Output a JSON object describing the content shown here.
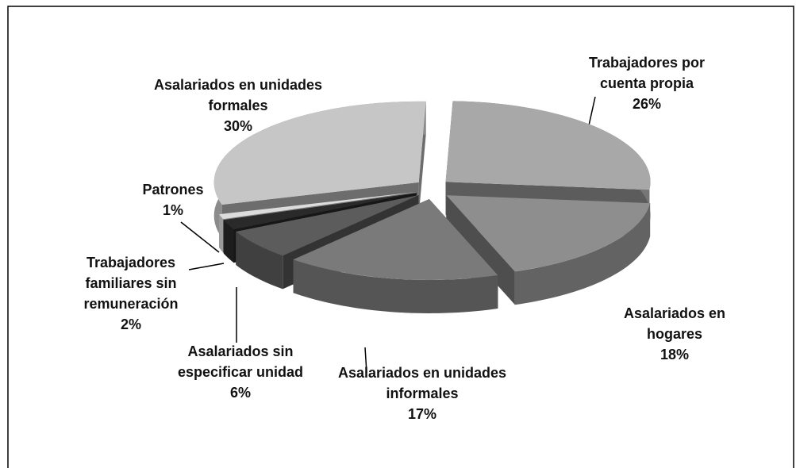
{
  "chart_data": {
    "type": "pie3d",
    "categories": [
      "Trabajadores por cuenta propia",
      "Asalariados en hogares",
      "Asalariados en unidades informales",
      "Asalariados sin especificar unidad",
      "Trabajadores familiares sin remuneración",
      "Patrones",
      "Asalariados en unidades formales"
    ],
    "values": [
      26,
      18,
      17,
      6,
      2,
      1,
      30
    ],
    "value_labels": [
      "26%",
      "18%",
      "17%",
      "6%",
      "2%",
      "1%",
      "30%"
    ],
    "colors": [
      "#a8a8a8",
      "#8e8e8e",
      "#7a7a7a",
      "#5c5c5c",
      "#2a2a2a",
      "#dcdcdc",
      "#c6c6c6"
    ]
  }
}
